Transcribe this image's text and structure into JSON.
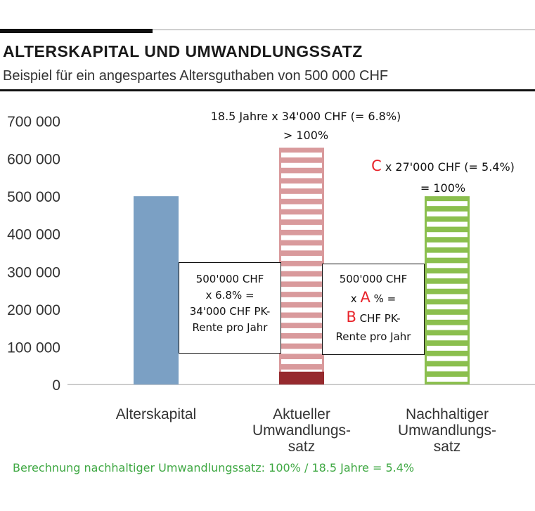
{
  "header": {
    "title": "ALTERSKAPITAL UND UMWANDLUNGSSATZ",
    "subtitle": "Beispiel für ein angespartes Altersguthaben von 500 000 CHF"
  },
  "chart_data": {
    "type": "bar",
    "title": "ALTERSKAPITAL UND UMWANDLUNGSSATZ",
    "subtitle": "Beispiel für ein angespartes Altersguthaben von 500 000 CHF",
    "categories": [
      [
        "Alterskapital"
      ],
      [
        "Aktueller",
        "Umwandlungs-",
        "satz"
      ],
      [
        "Nachhaltiger",
        "Umwandlungs-",
        "satz"
      ]
    ],
    "values": [
      500000,
      629000,
      500000
    ],
    "base_segment": {
      "category_index": 1,
      "value": 34000,
      "color": "#962a2e"
    },
    "colors": {
      "alterskapital": "#7ba0c4",
      "aktueller": "#d99a9c",
      "nachhaltiger": "#8bbf4e",
      "stripe_gap": "#ffffff",
      "accent_red": "#e8232a",
      "footer_green": "#3fa843"
    },
    "bar_styles": [
      "solid",
      "striped",
      "striped"
    ],
    "yticks": [
      {
        "value": 0,
        "label": "0"
      },
      {
        "value": 100000,
        "label": "100 000"
      },
      {
        "value": 200000,
        "label": "200 000"
      },
      {
        "value": 300000,
        "label": "300 000"
      },
      {
        "value": 400000,
        "label": "400 000"
      },
      {
        "value": 500000,
        "label": "500 000"
      },
      {
        "value": 600000,
        "label": "600 000"
      },
      {
        "value": 700000,
        "label": "700 000"
      }
    ],
    "ylim": [
      0,
      700000
    ],
    "grid": false,
    "xlabel": "",
    "ylabel": ""
  },
  "annotations": {
    "aktueller_line1": "18.5 Jahre x 34'000 CHF (= 6.8%)",
    "aktueller_line2": "> 100%",
    "nachhaltiger_letter": "C",
    "nachhaltiger_line1_rest": " x 27'000 CHF (= 5.4%)",
    "nachhaltiger_line2": "= 100%"
  },
  "calc_box_1": {
    "line1": "500'000 CHF",
    "line2": "x 6.8% =",
    "line3": "34'000 CHF PK-",
    "line4": "Rente pro Jahr"
  },
  "calc_box_2": {
    "line1": "500'000 CHF",
    "line2_pre": "x ",
    "letter_a": "A",
    "line2_post": " % =",
    "letter_b": "B",
    "line3_post": " CHF PK-",
    "line4": "Rente pro Jahr"
  },
  "footer": "Berechnung nachhaltiger Umwandlungssatz: 100% / 18.5 Jahre = 5.4%"
}
